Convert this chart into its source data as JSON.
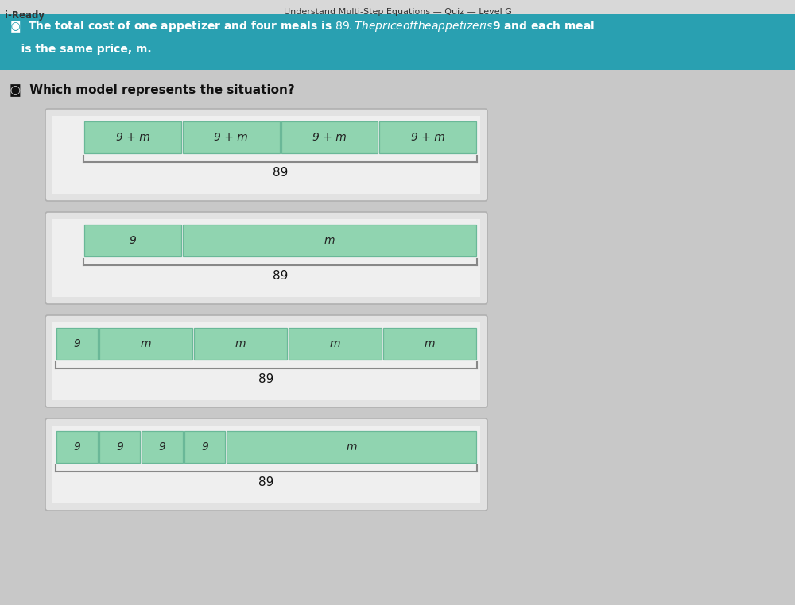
{
  "title_bar_text": "Understand Multi-Step Equations — Quiz — Level G",
  "iready_text": "i-Ready",
  "header_bg": "#29a0b1",
  "header_text_line1": "◙  The total cost of one appetizer and four meals is $89. The price of the appetizer is $9 and each meal",
  "header_text_line2": "   is the same price, m.",
  "question_label": "◙  Which model represents the situation?",
  "page_bg": "#c8c8c8",
  "content_bg": "#d8d8d8",
  "outer_box_bg": "#e0e0e0",
  "inner_box_bg": "#ebebeb",
  "green": "#90d4b0",
  "green_border": "#6ab898",
  "bracket_color": "#888888",
  "models": [
    {
      "cells": [
        {
          "label": "9 + m",
          "units": 1
        },
        {
          "label": "9 + m",
          "units": 1
        },
        {
          "label": "9 + m",
          "units": 1
        },
        {
          "label": "9 + m",
          "units": 1
        }
      ],
      "total_units": 4,
      "indent_left": true
    },
    {
      "cells": [
        {
          "label": "9",
          "units": 1
        },
        {
          "label": "m",
          "units": 3
        }
      ],
      "total_units": 4,
      "indent_left": true
    },
    {
      "cells": [
        {
          "label": "9",
          "units": 0.45
        },
        {
          "label": "m",
          "units": 1
        },
        {
          "label": "m",
          "units": 1
        },
        {
          "label": "m",
          "units": 1
        },
        {
          "label": "m",
          "units": 1
        }
      ],
      "total_units": 4.45,
      "indent_left": false
    },
    {
      "cells": [
        {
          "label": "9",
          "units": 0.45
        },
        {
          "label": "9",
          "units": 0.45
        },
        {
          "label": "9",
          "units": 0.45
        },
        {
          "label": "9",
          "units": 0.45
        },
        {
          "label": "m",
          "units": 2.65
        }
      ],
      "total_units": 4.45,
      "indent_left": false
    }
  ]
}
